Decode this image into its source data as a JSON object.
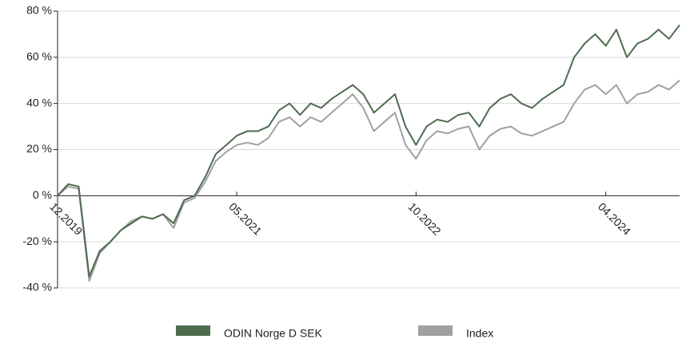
{
  "chart_data": {
    "type": "line",
    "x": [
      "12.2019",
      "01.2020",
      "02.2020",
      "03.2020",
      "04.2020",
      "05.2020",
      "06.2020",
      "07.2020",
      "08.2020",
      "09.2020",
      "10.2020",
      "11.2020",
      "12.2020",
      "01.2021",
      "02.2021",
      "03.2021",
      "04.2021",
      "05.2021",
      "06.2021",
      "07.2021",
      "08.2021",
      "09.2021",
      "10.2021",
      "11.2021",
      "12.2021",
      "01.2022",
      "02.2022",
      "03.2022",
      "04.2022",
      "05.2022",
      "06.2022",
      "07.2022",
      "08.2022",
      "09.2022",
      "10.2022",
      "11.2022",
      "12.2022",
      "01.2023",
      "02.2023",
      "03.2023",
      "04.2023",
      "05.2023",
      "06.2023",
      "07.2023",
      "08.2023",
      "09.2023",
      "10.2023",
      "11.2023",
      "12.2023",
      "01.2024",
      "02.2024",
      "03.2024",
      "04.2024",
      "05.2024",
      "06.2024",
      "07.2024",
      "08.2024",
      "09.2024",
      "10.2024",
      "11.2024"
    ],
    "xticks": [
      "12.2019",
      "05.2021",
      "10.2022",
      "04.2024"
    ],
    "series": [
      {
        "name": "Index",
        "color": "#a0a0a0",
        "values": [
          0,
          4,
          3,
          -37,
          -25,
          -20,
          -15,
          -11,
          -9,
          -10,
          -8,
          -14,
          -3,
          -1,
          6,
          15,
          19,
          22,
          23,
          22,
          25,
          32,
          34,
          30,
          34,
          32,
          36,
          40,
          44,
          38,
          28,
          32,
          36,
          22,
          16,
          24,
          28,
          27,
          29,
          30,
          20,
          26,
          29,
          30,
          27,
          26,
          28,
          30,
          32,
          40,
          46,
          48,
          44,
          48,
          40,
          44,
          45,
          48,
          46,
          50
        ]
      },
      {
        "name": "ODIN Norge D SEK",
        "color": "#4e6b4e",
        "values": [
          0,
          5,
          4,
          -35,
          -24,
          -20,
          -15,
          -12,
          -9,
          -10,
          -8,
          -12,
          -2,
          0,
          8,
          18,
          22,
          26,
          28,
          28,
          30,
          37,
          40,
          35,
          40,
          38,
          42,
          45,
          48,
          44,
          36,
          40,
          44,
          30,
          22,
          30,
          33,
          32,
          35,
          36,
          30,
          38,
          42,
          44,
          40,
          38,
          42,
          45,
          48,
          60,
          66,
          70,
          65,
          72,
          60,
          66,
          68,
          72,
          68,
          74
        ]
      }
    ],
    "ylim": [
      -40,
      80
    ],
    "yticks": [
      {
        "value": -40,
        "label": "-40 %"
      },
      {
        "value": -20,
        "label": "-20 %"
      },
      {
        "value": 0,
        "label": "0 %"
      },
      {
        "value": 20,
        "label": "20 %"
      },
      {
        "value": 40,
        "label": "40 %"
      },
      {
        "value": 60,
        "label": "60 %"
      },
      {
        "value": 80,
        "label": "80 %"
      }
    ],
    "grid": true
  }
}
